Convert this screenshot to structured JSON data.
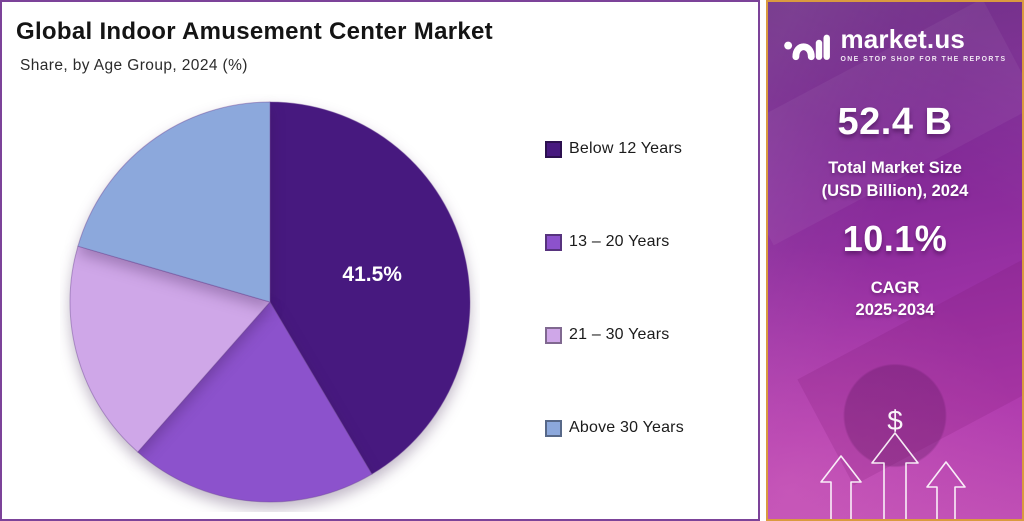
{
  "header": {
    "title": "Global Indoor Amusement Center Market",
    "subtitle": "Share, by Age Group, 2024 (%)"
  },
  "chart_data": {
    "type": "pie",
    "title": "Global Indoor Amusement Center Market",
    "subtitle": "Share, by Age Group, 2024 (%)",
    "unit": "%",
    "start_angle_deg": 0,
    "direction": "clockwise",
    "legend_position": "right",
    "slices": [
      {
        "label": "Below 12 Years",
        "value": 41.5,
        "color": "#47197F",
        "data_label": "41.5%"
      },
      {
        "label": "13 – 20 Years",
        "value": 20.0,
        "color": "#8C52CC",
        "data_label": ""
      },
      {
        "label": "21 – 30 Years",
        "value": 18.0,
        "color": "#CFA7E8",
        "data_label": ""
      },
      {
        "label": "Above 30 Years",
        "value": 20.5,
        "color": "#8CA8DC",
        "data_label": ""
      }
    ]
  },
  "sidebar": {
    "logo": {
      "brand": "market.us",
      "tagline": "ONE STOP SHOP FOR THE REPORTS"
    },
    "stat1": {
      "value": "52.4 B",
      "line1": "Total Market Size",
      "line2": "(USD Billion), 2024"
    },
    "stat2": {
      "value": "10.1%",
      "line1": "CAGR",
      "line2": "2025-2034"
    },
    "currency_symbol": "$"
  },
  "colors": {
    "main_border": "#7C4399",
    "sidebar_border": "#DA9A3F",
    "sidebar_gradient_top": "#641F7E",
    "sidebar_gradient_bottom": "#C04FB5",
    "pie_label_text": "#FFFFFF"
  }
}
